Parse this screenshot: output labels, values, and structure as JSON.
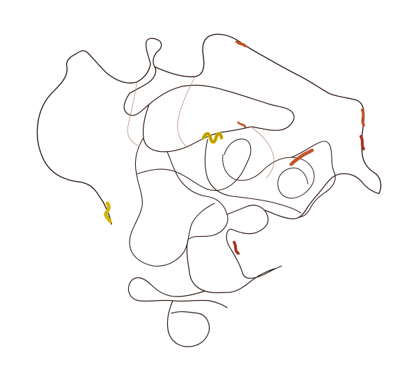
{
  "viewer": {
    "background": "#ffffff"
  },
  "structure": {
    "style": "cartoon",
    "colors": {
      "coil_dark": "#2a1712",
      "coil_light": "#b58a78",
      "segment_orange": "#c2552a",
      "segment_red": "#a8301e",
      "helix_yellow": "#d4b400",
      "helix_olive": "#a08c10"
    }
  }
}
